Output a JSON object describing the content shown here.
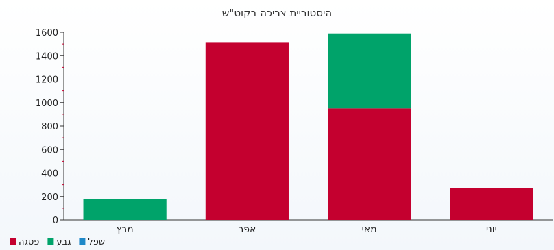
{
  "chart_data": {
    "type": "bar",
    "stacked": true,
    "title": "היסטוריית צריכה בקוט\"ש",
    "xlabel": "",
    "ylabel": "",
    "categories": [
      "מרץ",
      "אפר",
      "מאי",
      "יוני"
    ],
    "series": [
      {
        "name": "פסגה",
        "color": "#c4002f",
        "values": [
          0,
          1510,
          950,
          270
        ]
      },
      {
        "name": "גבע",
        "color": "#00a36a",
        "values": [
          180,
          0,
          640,
          0
        ]
      },
      {
        "name": "שפל",
        "color": "#1e88c8",
        "values": [
          0,
          0,
          0,
          0
        ]
      }
    ],
    "yticks": [
      0,
      200,
      400,
      600,
      800,
      1000,
      1200,
      1400,
      1600
    ],
    "ylim": [
      0,
      1600
    ],
    "grid": false,
    "legend_position": "bottom-left"
  }
}
